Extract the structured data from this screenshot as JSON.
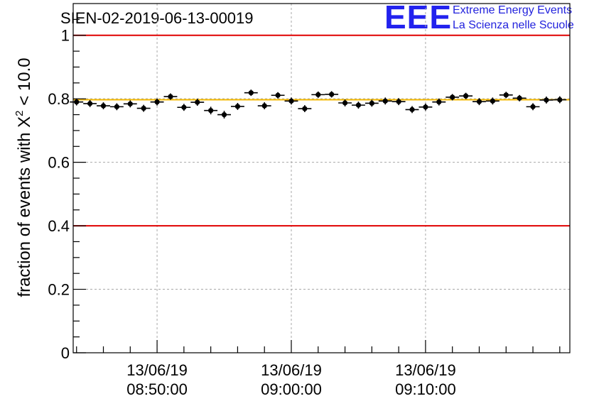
{
  "chart_data": {
    "type": "scatter",
    "title": "SIEN-02-2019-06-13-00019",
    "ylabel": {
      "prefix": "fraction of events with ",
      "symbol": "X",
      "superscript": "2",
      "suffix": " < 10.0"
    },
    "xlabel": "",
    "ylim": [
      0,
      1.1
    ],
    "xlim_minutes": [
      -16.25,
      20.75
    ],
    "x_unit": "minutes relative to 13/06/19 09:00:00",
    "y_ticks": [
      {
        "value": 0,
        "label": "0"
      },
      {
        "value": 0.2,
        "label": "0.2"
      },
      {
        "value": 0.4,
        "label": "0.4"
      },
      {
        "value": 0.6,
        "label": "0.6"
      },
      {
        "value": 0.8,
        "label": "0.8"
      },
      {
        "value": 1,
        "label": "1"
      }
    ],
    "x_ticks": [
      {
        "minute": -10,
        "date": "13/06/19",
        "time": "08:50:00"
      },
      {
        "minute": 0,
        "date": "13/06/19",
        "time": "09:00:00"
      },
      {
        "minute": 10,
        "date": "13/06/19",
        "time": "09:10:00"
      }
    ],
    "grid": true,
    "reference_lines": [
      {
        "name": "upper-limit",
        "y": 1.0,
        "color": "#e00000"
      },
      {
        "name": "lower-limit",
        "y": 0.4,
        "color": "#e00000"
      },
      {
        "name": "mean-value",
        "y": 0.797,
        "color": "#f5b800"
      }
    ],
    "series": [
      {
        "name": "fraction",
        "color": "#000000",
        "bin_width_minutes": 1,
        "x_minutes": [
          -16,
          -15,
          -14,
          -13,
          -12,
          -11,
          -10,
          -9,
          -8,
          -7,
          -6,
          -5,
          -4,
          -3,
          -2,
          -1,
          0,
          1,
          2,
          3,
          4,
          5,
          6,
          7,
          8,
          9,
          10,
          11,
          12,
          13,
          14,
          15,
          16,
          17,
          18,
          19,
          20
        ],
        "values": [
          0.79,
          0.785,
          0.778,
          0.775,
          0.784,
          0.77,
          0.79,
          0.807,
          0.773,
          0.789,
          0.763,
          0.75,
          0.776,
          0.819,
          0.778,
          0.811,
          0.793,
          0.769,
          0.813,
          0.814,
          0.787,
          0.78,
          0.786,
          0.793,
          0.791,
          0.766,
          0.774,
          0.79,
          0.805,
          0.809,
          0.791,
          0.793,
          0.812,
          0.802,
          0.775,
          0.796,
          0.797
        ],
        "errors": [
          0.011,
          0.011,
          0.011,
          0.011,
          0.011,
          0.011,
          0.011,
          0.01,
          0.011,
          0.011,
          0.012,
          0.012,
          0.011,
          0.01,
          0.011,
          0.01,
          0.011,
          0.011,
          0.01,
          0.01,
          0.011,
          0.011,
          0.011,
          0.011,
          0.011,
          0.011,
          0.011,
          0.011,
          0.01,
          0.01,
          0.011,
          0.011,
          0.01,
          0.01,
          0.011,
          0.011,
          0.011
        ]
      }
    ]
  },
  "logo": {
    "mark": "EEE",
    "line1": "Extreme Energy Events",
    "line2": "La Scienza nelle Scuole",
    "color": "#2222ee"
  }
}
